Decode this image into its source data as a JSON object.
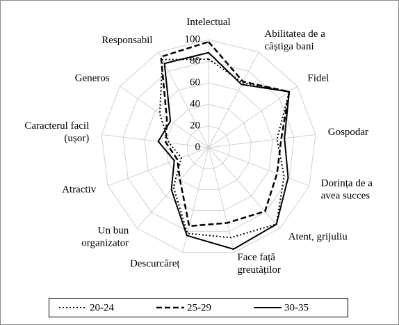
{
  "chart_data": {
    "type": "radar",
    "categories": [
      "Intelectual",
      "Abilitatea de a\ncâștiga bani",
      "Fidel",
      "Gospodar",
      "Dorința de a\navea  succes",
      "Atent, grijuliu",
      "Face față\ngreutăților",
      "Descurcăreț",
      "Un bun\norganizator",
      "Atractiv",
      "Caracterul facil\n(ușor)",
      "Generos",
      "Responsabil"
    ],
    "series": [
      {
        "name": "20-24",
        "color": "#000000",
        "dash": "dotted",
        "values": [
          82,
          68,
          91,
          64,
          75,
          95,
          86,
          82,
          49,
          27,
          37,
          55,
          92
        ]
      },
      {
        "name": "25-29",
        "color": "#000000",
        "dash": "dashed",
        "values": [
          98,
          69,
          91,
          68,
          68,
          79,
          72,
          75,
          40,
          31,
          40,
          47,
          95
        ]
      },
      {
        "name": "30-35",
        "color": "#000000",
        "dash": "solid",
        "values": [
          88,
          66,
          91,
          71,
          79,
          95,
          97,
          84,
          52,
          34,
          47,
          43,
          88
        ]
      }
    ],
    "ylim": [
      0,
      100
    ],
    "yticks": [
      0,
      20,
      40,
      60,
      80,
      100
    ],
    "grid": true,
    "legend": "bottom"
  }
}
